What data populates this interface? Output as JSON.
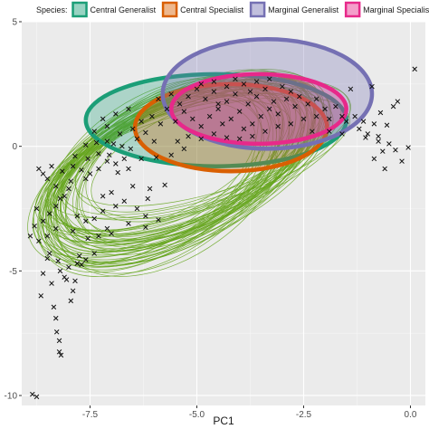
{
  "chart_data": {
    "type": "scatter",
    "title": "",
    "xlabel": "PC1",
    "ylabel": "",
    "xlim": [
      -9.1,
      0.35
    ],
    "ylim": [
      -10.4,
      5.0
    ],
    "x_ticks": [
      -7.5,
      -5.0,
      -2.5,
      0.0
    ],
    "y_ticks": [
      -10,
      -5,
      0,
      5
    ],
    "x_tick_labels": [
      "-7.5",
      "-5.0",
      "-2.5",
      "0.0"
    ],
    "y_tick_labels": [
      "-10",
      "-5",
      "0",
      "5"
    ],
    "grid": true,
    "legend": {
      "title": "Species:",
      "position": "top",
      "entries": [
        {
          "label": "Central Generalist",
          "color": "#1b9e77"
        },
        {
          "label": "Central Specialist",
          "color": "#d95f02"
        },
        {
          "label": "Marginal Generalist",
          "color": "#7570b3"
        },
        {
          "label": "Marginal Specialist",
          "color": "#e7298a"
        }
      ]
    },
    "species_ellipses": [
      {
        "name": "Central Generalist",
        "color": "#1b9e77",
        "cx": -4.55,
        "cy": 1.05,
        "rx": 3.05,
        "ry": 1.85
      },
      {
        "name": "Central Specialist",
        "color": "#d95f02",
        "cx": -4.2,
        "cy": 0.75,
        "rx": 2.25,
        "ry": 1.75
      },
      {
        "name": "Marginal Generalist",
        "color": "#7570b3",
        "cx": -3.35,
        "cy": 2.1,
        "rx": 2.45,
        "ry": 2.2
      },
      {
        "name": "Marginal Specialist",
        "color": "#e7298a",
        "cx": -3.55,
        "cy": 1.5,
        "rx": 2.05,
        "ry": 1.4
      }
    ],
    "points": [
      [
        -8.85,
        -9.95
      ],
      [
        -8.75,
        -10.05
      ],
      [
        -8.22,
        -8.25
      ],
      [
        -8.18,
        -8.38
      ],
      [
        -8.22,
        -7.8
      ],
      [
        -8.28,
        -7.45
      ],
      [
        -8.3,
        -6.9
      ],
      [
        -8.35,
        -6.45
      ],
      [
        -7.9,
        -5.8
      ],
      [
        -7.95,
        -6.2
      ],
      [
        -7.85,
        -5.4
      ],
      [
        -8.05,
        -5.35
      ],
      [
        -8.1,
        -5.25
      ],
      [
        -8.4,
        -5.5
      ],
      [
        -8.2,
        -5.0
      ],
      [
        -8.65,
        -6.0
      ],
      [
        -8.6,
        -5.1
      ],
      [
        -8.5,
        -4.5
      ],
      [
        -8.0,
        -4.85
      ],
      [
        -8.25,
        -4.6
      ],
      [
        -7.8,
        -4.7
      ],
      [
        -7.7,
        -4.75
      ],
      [
        -7.6,
        -4.55
      ],
      [
        -7.75,
        -4.4
      ],
      [
        -8.45,
        -4.3
      ],
      [
        -8.7,
        -3.8
      ],
      [
        -8.5,
        -3.6
      ],
      [
        -7.4,
        -4.3
      ],
      [
        -7.55,
        -3.7
      ],
      [
        -8.9,
        -3.6
      ],
      [
        -8.3,
        -3.3
      ],
      [
        -7.9,
        -3.4
      ],
      [
        -8.8,
        -3.2
      ],
      [
        -8.6,
        -3.0
      ],
      [
        -7.6,
        -3.0
      ],
      [
        -7.1,
        -3.3
      ],
      [
        -8.45,
        -2.7
      ],
      [
        -8.3,
        -2.4
      ],
      [
        -8.2,
        -2.1
      ],
      [
        -8.75,
        -2.5
      ],
      [
        -8.1,
        -2.0
      ],
      [
        -7.8,
        -2.8
      ],
      [
        -7.4,
        -2.9
      ],
      [
        -8.0,
        -1.7
      ],
      [
        -8.3,
        -1.6
      ],
      [
        -8.5,
        -1.3
      ],
      [
        -8.6,
        -1.1
      ],
      [
        -8.7,
        -0.9
      ],
      [
        -8.4,
        -0.8
      ],
      [
        -7.95,
        -1.4
      ],
      [
        -8.15,
        -1.0
      ],
      [
        -7.6,
        -1.3
      ],
      [
        -7.2,
        -2.0
      ],
      [
        -7.0,
        -1.85
      ],
      [
        -6.7,
        -2.2
      ],
      [
        -6.4,
        -2.5
      ],
      [
        -6.15,
        -2.1
      ],
      [
        -7.9,
        -0.8
      ],
      [
        -7.7,
        -0.95
      ],
      [
        -7.5,
        -1.1
      ],
      [
        -7.3,
        -0.9
      ],
      [
        -7.1,
        -0.6
      ],
      [
        -6.9,
        -0.7
      ],
      [
        -6.85,
        -1.05
      ],
      [
        -7.85,
        -0.4
      ],
      [
        -7.55,
        -0.5
      ],
      [
        -7.3,
        -0.3
      ],
      [
        -7.05,
        -0.35
      ],
      [
        -6.7,
        -0.5
      ],
      [
        -6.6,
        -0.9
      ],
      [
        -6.3,
        -0.5
      ],
      [
        -7.6,
        0.05
      ],
      [
        -7.35,
        0.15
      ],
      [
        -7.1,
        0.2
      ],
      [
        -6.95,
        0.1
      ],
      [
        -6.75,
        0.0
      ],
      [
        -6.55,
        -0.1
      ],
      [
        -6.4,
        0.3
      ],
      [
        -7.4,
        0.6
      ],
      [
        -7.1,
        0.8
      ],
      [
        -6.8,
        0.5
      ],
      [
        -6.5,
        0.7
      ],
      [
        -6.2,
        0.55
      ],
      [
        -6.0,
        0.2
      ],
      [
        -6.3,
        1.0
      ],
      [
        -7.2,
        1.1
      ],
      [
        -6.9,
        1.3
      ],
      [
        -6.6,
        1.5
      ],
      [
        -6.05,
        1.2
      ],
      [
        -5.85,
        0.9
      ],
      [
        -5.7,
        1.5
      ],
      [
        -5.5,
        1.0
      ],
      [
        -5.9,
        1.9
      ],
      [
        -5.6,
        2.1
      ],
      [
        -5.4,
        1.7
      ],
      [
        -5.2,
        2.0
      ],
      [
        -5.0,
        2.3
      ],
      [
        -4.8,
        1.9
      ],
      [
        -4.6,
        2.2
      ],
      [
        -5.3,
        1.4
      ],
      [
        -5.1,
        1.1
      ],
      [
        -4.9,
        0.8
      ],
      [
        -4.7,
        1.2
      ],
      [
        -4.5,
        1.5
      ],
      [
        -4.3,
        1.8
      ],
      [
        -4.1,
        2.1
      ],
      [
        -4.4,
        0.9
      ],
      [
        -4.2,
        1.1
      ],
      [
        -4.0,
        1.4
      ],
      [
        -3.8,
        1.7
      ],
      [
        -3.6,
        2.0
      ],
      [
        -3.4,
        2.3
      ],
      [
        -3.2,
        1.8
      ],
      [
        -3.9,
        0.7
      ],
      [
        -3.7,
        0.9
      ],
      [
        -3.5,
        1.2
      ],
      [
        -3.3,
        1.5
      ],
      [
        -3.1,
        1.3
      ],
      [
        -2.9,
        1.9
      ],
      [
        -2.7,
        1.6
      ],
      [
        -3.6,
        2.6
      ],
      [
        -3.3,
        2.7
      ],
      [
        -3.0,
        2.4
      ],
      [
        -2.8,
        2.2
      ],
      [
        -2.6,
        2.0
      ],
      [
        -2.4,
        1.7
      ],
      [
        -2.2,
        1.9
      ],
      [
        -4.9,
        2.5
      ],
      [
        -4.6,
        2.6
      ],
      [
        -4.3,
        2.4
      ],
      [
        -4.1,
        2.7
      ],
      [
        -3.9,
        2.5
      ],
      [
        -3.75,
        2.2
      ],
      [
        -4.5,
        1.7
      ],
      [
        -5.45,
        0.2
      ],
      [
        -5.2,
        0.4
      ],
      [
        -4.9,
        0.3
      ],
      [
        -4.6,
        0.5
      ],
      [
        -4.3,
        0.35
      ],
      [
        -4.0,
        0.3
      ],
      [
        -3.7,
        0.4
      ],
      [
        -3.4,
        0.6
      ],
      [
        -3.1,
        0.8
      ],
      [
        -2.8,
        0.9
      ],
      [
        -2.5,
        1.1
      ],
      [
        -2.2,
        1.2
      ],
      [
        -1.9,
        1.1
      ],
      [
        -1.6,
        1.2
      ],
      [
        -2.0,
        1.5
      ],
      [
        -1.75,
        1.6
      ],
      [
        -1.5,
        1.0
      ],
      [
        -1.3,
        1.2
      ],
      [
        -1.1,
        1.0
      ],
      [
        -0.85,
        0.9
      ],
      [
        -0.75,
        0.4
      ],
      [
        -1.6,
        0.5
      ],
      [
        -1.9,
        0.6
      ],
      [
        -2.3,
        0.6
      ],
      [
        -1.2,
        0.7
      ],
      [
        -1.0,
        0.5
      ],
      [
        -1.4,
        2.3
      ],
      [
        -0.9,
        2.4
      ],
      [
        -0.3,
        1.8
      ],
      [
        -0.5,
        0.1
      ],
      [
        -0.75,
        0.2
      ],
      [
        -1.05,
        0.35
      ],
      [
        -0.65,
        -0.2
      ],
      [
        -0.85,
        -0.5
      ],
      [
        -0.35,
        -0.15
      ],
      [
        -0.05,
        -0.05
      ],
      [
        -0.2,
        -0.6
      ],
      [
        -0.6,
        -0.9
      ],
      [
        0.1,
        3.1
      ],
      [
        -0.4,
        1.6
      ],
      [
        -0.7,
        1.35
      ],
      [
        -0.55,
        0.85
      ],
      [
        -6.2,
        -2.8
      ],
      [
        -5.9,
        -2.95
      ],
      [
        -6.1,
        -1.7
      ],
      [
        -5.75,
        -1.55
      ],
      [
        -5.95,
        -0.45
      ],
      [
        -5.6,
        -0.35
      ],
      [
        -5.3,
        -0.1
      ],
      [
        -6.5,
        -1.6
      ],
      [
        -6.9,
        -2.4
      ],
      [
        -6.6,
        -3.1
      ],
      [
        -6.2,
        -3.25
      ],
      [
        -7.2,
        -2.6
      ],
      [
        -7.3,
        -3.6
      ],
      [
        -7.0,
        -3.5
      ]
    ]
  }
}
